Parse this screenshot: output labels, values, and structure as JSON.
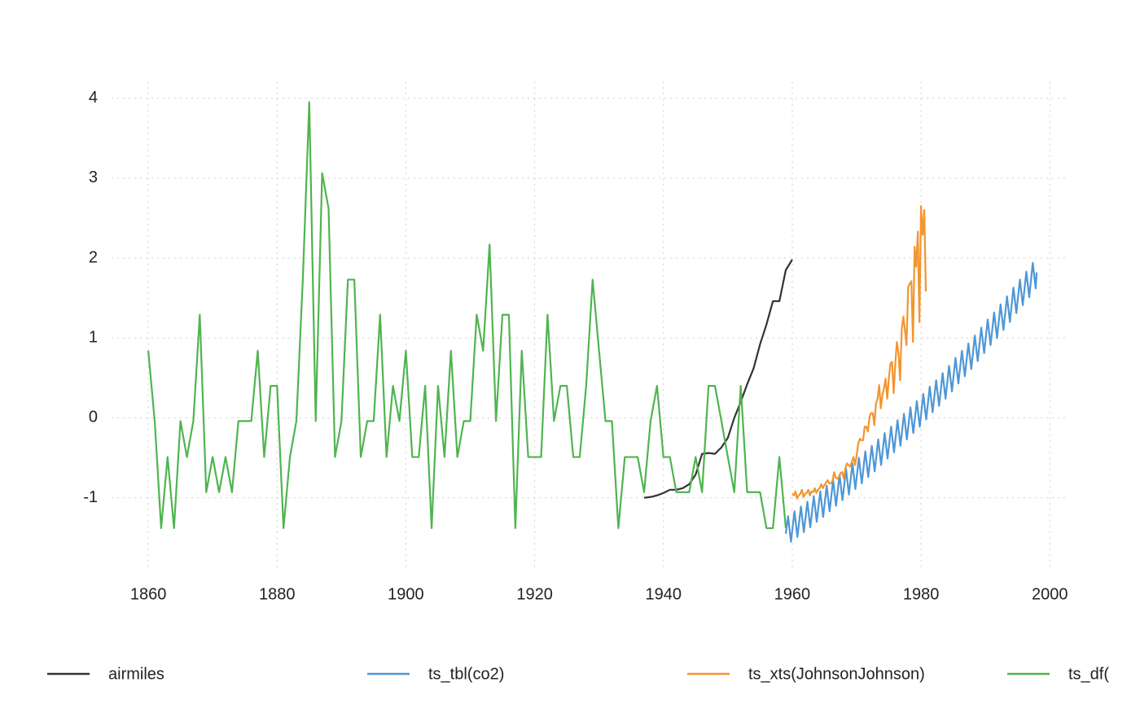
{
  "chart_data": {
    "type": "line",
    "xlim": [
      1854.3,
      2003
    ],
    "ylim": [
      -1.9,
      4.21
    ],
    "xticks": [
      1860,
      1880,
      1900,
      1920,
      1940,
      1960,
      1980,
      2000
    ],
    "yticks": [
      -1,
      0,
      1,
      2,
      3,
      4
    ],
    "grid": true,
    "legend": "bottom",
    "series": [
      {
        "name": "airmiles",
        "color": "#333333",
        "x": [
          1937,
          1938,
          1939,
          1940,
          1941,
          1942,
          1943,
          1944,
          1945,
          1946,
          1947,
          1948,
          1949,
          1950,
          1951,
          1952,
          1953,
          1954,
          1955,
          1956,
          1957,
          1958,
          1959,
          1960
        ],
        "values": [
          -1.0,
          -0.99,
          -0.97,
          -0.94,
          -0.9,
          -0.9,
          -0.88,
          -0.83,
          -0.71,
          -0.45,
          -0.44,
          -0.45,
          -0.37,
          -0.25,
          0.0,
          0.2,
          0.42,
          0.62,
          0.92,
          1.17,
          1.46,
          1.46,
          1.85,
          1.98
        ]
      },
      {
        "name": "ts_tbl(co2)",
        "color": "#4f97d6",
        "x": [
          1959,
          1959.35,
          1959.8,
          1960.35,
          1960.8,
          1961.35,
          1961.8,
          1962.35,
          1962.8,
          1963.35,
          1963.8,
          1964.35,
          1964.8,
          1965.35,
          1965.8,
          1966.35,
          1966.8,
          1967.35,
          1967.8,
          1968.35,
          1968.8,
          1969.35,
          1969.8,
          1970.35,
          1970.8,
          1971.35,
          1971.8,
          1972.35,
          1972.8,
          1973.35,
          1973.8,
          1974.35,
          1974.8,
          1975.35,
          1975.8,
          1976.35,
          1976.8,
          1977.35,
          1977.8,
          1978.35,
          1978.8,
          1979.35,
          1979.8,
          1980.35,
          1980.8,
          1981.35,
          1981.8,
          1982.35,
          1982.8,
          1983.35,
          1983.8,
          1984.35,
          1984.8,
          1985.35,
          1985.8,
          1986.35,
          1986.8,
          1987.35,
          1987.8,
          1988.35,
          1988.8,
          1989.35,
          1989.8,
          1990.35,
          1990.8,
          1991.35,
          1991.8,
          1992.35,
          1992.8,
          1993.35,
          1993.8,
          1994.35,
          1994.8,
          1995.35,
          1995.8,
          1996.35,
          1996.8,
          1997.35,
          1997.8,
          1997.95
        ],
        "values": [
          -1.45,
          -1.23,
          -1.55,
          -1.17,
          -1.49,
          -1.11,
          -1.43,
          -1.05,
          -1.37,
          -0.98,
          -1.3,
          -0.92,
          -1.24,
          -0.85,
          -1.17,
          -0.78,
          -1.1,
          -0.71,
          -1.03,
          -0.64,
          -0.96,
          -0.57,
          -0.89,
          -0.5,
          -0.82,
          -0.42,
          -0.74,
          -0.35,
          -0.67,
          -0.27,
          -0.59,
          -0.19,
          -0.51,
          -0.11,
          -0.43,
          -0.03,
          -0.35,
          0.05,
          -0.27,
          0.13,
          -0.19,
          0.21,
          -0.11,
          0.3,
          -0.02,
          0.39,
          0.07,
          0.47,
          0.15,
          0.56,
          0.24,
          0.65,
          0.33,
          0.75,
          0.43,
          0.84,
          0.52,
          0.93,
          0.61,
          1.03,
          0.71,
          1.13,
          0.81,
          1.23,
          0.91,
          1.32,
          1.0,
          1.42,
          1.1,
          1.52,
          1.2,
          1.63,
          1.31,
          1.73,
          1.41,
          1.83,
          1.51,
          1.94,
          1.62,
          1.82
        ]
      },
      {
        "name": "ts_xts(JohnsonJohnson)",
        "color": "#f39530",
        "x": [
          1960,
          1960.25,
          1960.5,
          1960.75,
          1961,
          1961.25,
          1961.5,
          1961.75,
          1962,
          1962.25,
          1962.5,
          1962.75,
          1963,
          1963.25,
          1963.5,
          1963.75,
          1964,
          1964.25,
          1964.5,
          1964.75,
          1965,
          1965.25,
          1965.5,
          1965.75,
          1966,
          1966.25,
          1966.5,
          1966.75,
          1967,
          1967.25,
          1967.5,
          1967.75,
          1968,
          1968.25,
          1968.5,
          1968.75,
          1969,
          1969.25,
          1969.5,
          1969.75,
          1970,
          1970.25,
          1970.5,
          1970.75,
          1971,
          1971.25,
          1971.5,
          1971.75,
          1972,
          1972.25,
          1972.5,
          1972.75,
          1973,
          1973.25,
          1973.5,
          1973.75,
          1974,
          1974.25,
          1974.5,
          1974.75,
          1975,
          1975.25,
          1975.5,
          1975.75,
          1976,
          1976.25,
          1976.5,
          1976.75,
          1977,
          1977.25,
          1977.5,
          1977.75,
          1978,
          1978.25,
          1978.5,
          1978.75,
          1979,
          1979.25,
          1979.5,
          1979.75,
          1980,
          1980.25,
          1980.5,
          1980.75
        ],
        "values": [
          -0.95,
          -0.97,
          -0.92,
          -1.01,
          -0.97,
          -0.95,
          -0.9,
          -0.99,
          -0.95,
          -0.94,
          -0.9,
          -0.97,
          -0.92,
          -0.93,
          -0.88,
          -0.94,
          -0.9,
          -0.88,
          -0.83,
          -0.88,
          -0.84,
          -0.81,
          -0.78,
          -0.82,
          -0.82,
          -0.79,
          -0.68,
          -0.75,
          -0.76,
          -0.74,
          -0.69,
          -0.68,
          -0.76,
          -0.63,
          -0.57,
          -0.59,
          -0.61,
          -0.55,
          -0.49,
          -0.59,
          -0.47,
          -0.32,
          -0.26,
          -0.28,
          -0.28,
          -0.11,
          -0.11,
          -0.17,
          0.01,
          0.06,
          0.06,
          -0.09,
          0.18,
          0.24,
          0.41,
          0.12,
          0.29,
          0.37,
          0.49,
          0.24,
          0.49,
          0.68,
          0.7,
          0.31,
          0.68,
          0.95,
          0.81,
          0.47,
          1.1,
          1.27,
          1.1,
          0.91,
          1.64,
          1.68,
          1.71,
          0.95,
          2.14,
          1.89,
          2.33,
          1.2,
          2.65,
          2.29,
          2.6,
          1.58
        ]
      },
      {
        "name": "ts_df(",
        "color": "#4fb44f",
        "x": [
          1860,
          1861,
          1862,
          1863,
          1864,
          1865,
          1866,
          1867,
          1868,
          1869,
          1870,
          1871,
          1872,
          1873,
          1874,
          1875,
          1876,
          1877,
          1878,
          1879,
          1880,
          1881,
          1882,
          1883,
          1884,
          1885,
          1886,
          1887,
          1888,
          1889,
          1890,
          1891,
          1892,
          1893,
          1894,
          1895,
          1896,
          1897,
          1898,
          1899,
          1900,
          1901,
          1902,
          1903,
          1904,
          1905,
          1906,
          1907,
          1908,
          1909,
          1910,
          1911,
          1912,
          1913,
          1914,
          1915,
          1916,
          1917,
          1918,
          1919,
          1920,
          1921,
          1922,
          1923,
          1924,
          1925,
          1926,
          1927,
          1928,
          1929,
          1930,
          1931,
          1932,
          1933,
          1934,
          1935,
          1936,
          1937,
          1938,
          1939,
          1940,
          1941,
          1942,
          1943,
          1944,
          1945,
          1946,
          1947,
          1948,
          1949,
          1950,
          1951,
          1952,
          1953,
          1954,
          1955,
          1956,
          1957,
          1958,
          1959
        ],
        "values": [
          0.84,
          -0.04,
          -1.38,
          -0.49,
          -1.38,
          -0.04,
          -0.49,
          -0.04,
          1.29,
          -0.93,
          -0.49,
          -0.93,
          -0.49,
          -0.93,
          -0.04,
          -0.04,
          -0.04,
          0.84,
          -0.49,
          0.4,
          0.4,
          -1.38,
          -0.49,
          -0.04,
          1.73,
          3.95,
          -0.04,
          3.06,
          2.62,
          -0.49,
          -0.04,
          1.73,
          1.73,
          -0.49,
          -0.04,
          -0.04,
          1.29,
          -0.49,
          0.4,
          -0.04,
          0.84,
          -0.49,
          -0.49,
          0.4,
          -1.38,
          0.4,
          -0.49,
          0.84,
          -0.49,
          -0.04,
          -0.04,
          1.29,
          0.84,
          2.17,
          -0.04,
          1.29,
          1.29,
          -1.38,
          0.84,
          -0.49,
          -0.49,
          -0.49,
          1.29,
          -0.04,
          0.4,
          0.4,
          -0.49,
          -0.49,
          0.4,
          1.73,
          0.84,
          -0.04,
          -0.04,
          -1.38,
          -0.49,
          -0.49,
          -0.49,
          -0.93,
          -0.04,
          0.4,
          -0.49,
          -0.49,
          -0.93,
          -0.93,
          -0.93,
          -0.49,
          -0.93,
          0.4,
          0.4,
          -0.04,
          -0.49,
          -0.93,
          0.4,
          -0.93,
          -0.93,
          -0.93,
          -1.38,
          -1.38,
          -0.49,
          -1.38
        ]
      }
    ]
  }
}
